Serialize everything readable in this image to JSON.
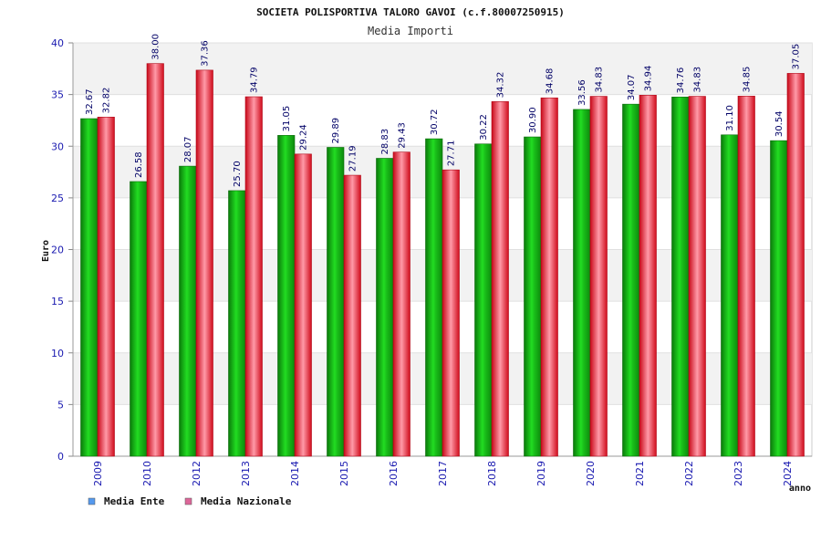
{
  "chart_data": {
    "type": "bar",
    "title": "SOCIETA POLISPORTIVA TALORO GAVOI (c.f.80007250915)",
    "subtitle": "Media Importi",
    "xlabel": "anno",
    "ylabel": "Euro",
    "ylim": [
      0,
      40
    ],
    "yticks": [
      "0",
      "5",
      "10",
      "15",
      "20",
      "25",
      "30",
      "35",
      "40"
    ],
    "categories": [
      "2009",
      "2010",
      "2012",
      "2013",
      "2014",
      "2015",
      "2016",
      "2017",
      "2018",
      "2019",
      "2020",
      "2021",
      "2022",
      "2023",
      "2024"
    ],
    "series": [
      {
        "name": "Media Ente",
        "color": "#12b012",
        "legend_color": "#5599ee",
        "values": [
          32.67,
          26.58,
          28.07,
          25.7,
          31.05,
          29.89,
          28.83,
          30.72,
          30.22,
          30.9,
          33.56,
          34.07,
          34.76,
          31.1,
          30.54
        ],
        "labels": [
          "32.67",
          "26.58",
          "28.07",
          "25.70",
          "31.05",
          "29.89",
          "28.83",
          "30.72",
          "30.22",
          "30.90",
          "33.56",
          "34.07",
          "34.76",
          "31.10",
          "30.54"
        ]
      },
      {
        "name": "Media Nazionale",
        "color": "#e01020",
        "legend_color": "#dd6699",
        "values": [
          32.82,
          38.0,
          37.36,
          34.79,
          29.24,
          27.19,
          29.43,
          27.71,
          34.32,
          34.68,
          34.83,
          34.94,
          34.83,
          34.85,
          37.05
        ],
        "labels": [
          "32.82",
          "38.00",
          "37.36",
          "34.79",
          "29.24",
          "27.19",
          "29.43",
          "27.71",
          "34.32",
          "34.68",
          "34.83",
          "34.94",
          "34.83",
          "34.85",
          "37.05"
        ]
      }
    ],
    "grid": true,
    "legend_position": "bottom-left"
  }
}
